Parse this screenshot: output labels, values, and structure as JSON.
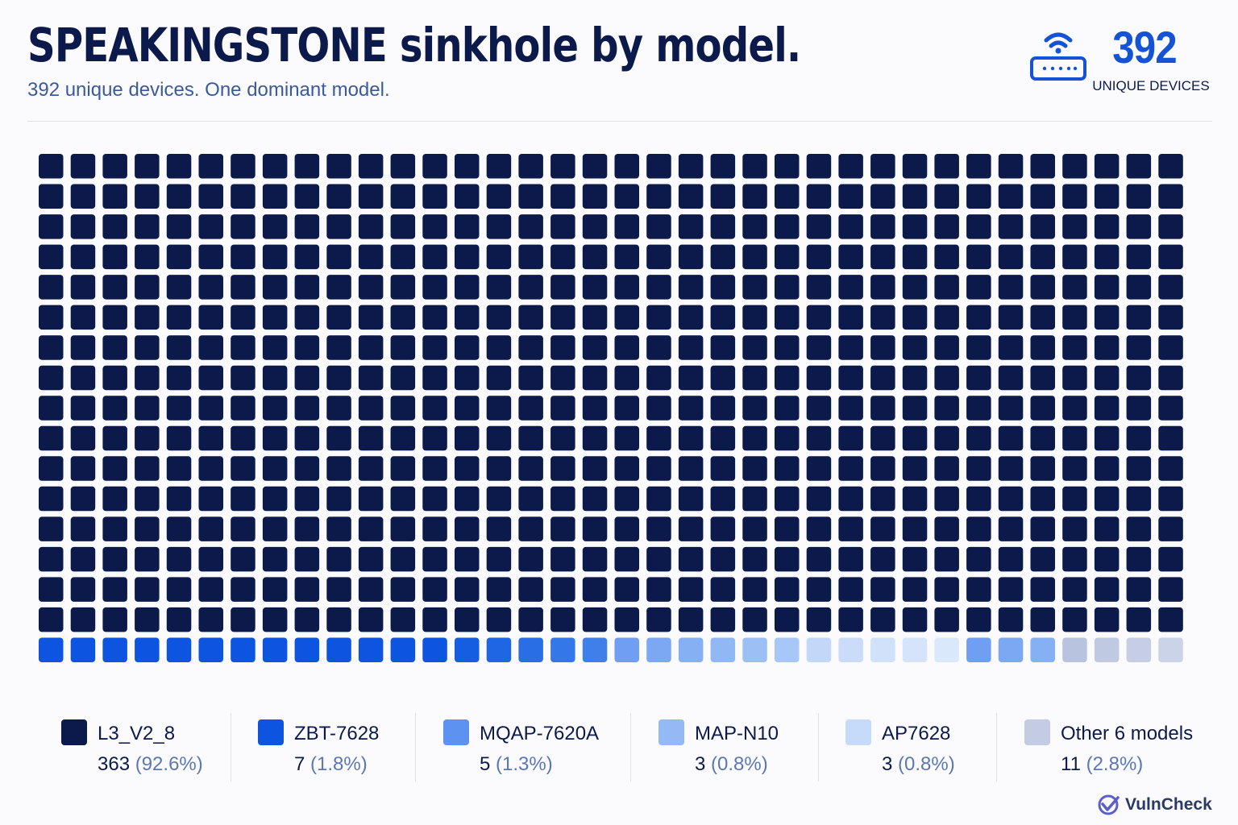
{
  "header": {
    "title": "SPEAKINGSTONE sinkhole by model.",
    "subtitle": "392 unique devices. One dominant model."
  },
  "kpi": {
    "icon": "router-wifi-icon",
    "value": "392",
    "label": "UNIQUE DEVICES"
  },
  "brand": {
    "icon": "vulncheck-logo-icon",
    "name": "VulnCheck"
  },
  "colors": {
    "title": "#0b1a4a",
    "accent": "#1553d6"
  },
  "chart_data": {
    "type": "waffle",
    "total": 392,
    "grid": {
      "columns": 36,
      "rows": 17
    },
    "series": [
      {
        "name": "L3_V2_8",
        "count": "363",
        "percent": "(92.6%)",
        "value": 363,
        "color": "#0b1a4a"
      },
      {
        "name": "ZBT-7628",
        "count": "7",
        "percent": "(1.8%)",
        "value": 7,
        "color": "#0d55e0"
      },
      {
        "name": "MQAP-7620A",
        "count": "5",
        "percent": "(1.3%)",
        "value": 5,
        "color": "#5d92f0"
      },
      {
        "name": "MAP-N10",
        "count": "3",
        "percent": "(0.8%)",
        "value": 3,
        "color": "#94b9f5"
      },
      {
        "name": "AP7628",
        "count": "3",
        "percent": "(0.8%)",
        "value": 3,
        "color": "#c5dbf9"
      },
      {
        "name": "Other 6 models",
        "count": "11",
        "percent": "(2.8%)",
        "value": 11,
        "color": "#c3cce2"
      }
    ],
    "bottom_row_colors": [
      "#0d55e0",
      "#0d55e0",
      "#0d55e0",
      "#0d55e0",
      "#0d55e0",
      "#0d55e0",
      "#0d55e0",
      "#0d55e0",
      "#0d55e0",
      "#0d55e0",
      "#0d55e0",
      "#0d55e0",
      "#0d55e0",
      "#155ee2",
      "#1f66e4",
      "#2a6ee6",
      "#3477e8",
      "#3f7fea",
      "#6f9ef2",
      "#7ba7f3",
      "#86b0f4",
      "#91b8f4",
      "#9cc0f5",
      "#a7c8f6",
      "#c3d8f9",
      "#cadcf9",
      "#d0e1fa",
      "#d5e4fa",
      "#dae8fb",
      "#6f9ef2",
      "#7ba7f3",
      "#86b0f4",
      "#b8c3df",
      "#bfc9e2",
      "#c5cee4",
      "#cad3e7"
    ]
  }
}
